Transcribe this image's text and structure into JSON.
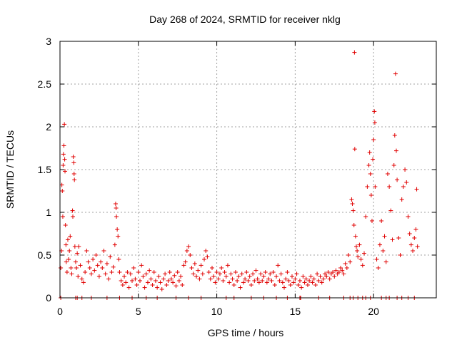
{
  "chart_data": {
    "type": "scatter",
    "title": "Day 268 of 2024, SRMTID for receiver nklg",
    "xlabel": "GPS time / hours",
    "ylabel": "SRMTID / TECUs",
    "xlim": [
      0,
      24
    ],
    "ylim": [
      0,
      3
    ],
    "x_ticks": [
      0,
      5,
      10,
      15,
      20
    ],
    "x_tick_labels": [
      "0",
      "5",
      "10",
      "15",
      "20"
    ],
    "y_ticks": [
      0,
      0.5,
      1,
      1.5,
      2,
      2.5,
      3
    ],
    "y_tick_labels": [
      "0",
      "0.5",
      "1",
      "1.5",
      "2",
      "2.5",
      "3"
    ],
    "grid": true,
    "marker": "+",
    "color": "#e00000",
    "series": [
      {
        "name": "SRMTID",
        "points": [
          [
            0.05,
            0.35
          ],
          [
            0.1,
            0.55
          ],
          [
            0.12,
            1.32
          ],
          [
            0.15,
            1.25
          ],
          [
            0.18,
            0.95
          ],
          [
            0.2,
            1.55
          ],
          [
            0.22,
            1.68
          ],
          [
            0.25,
            1.78
          ],
          [
            0.28,
            2.03
          ],
          [
            0.3,
            1.62
          ],
          [
            0.32,
            1.48
          ],
          [
            0.35,
            0.85
          ],
          [
            0.38,
            0.62
          ],
          [
            0.4,
            0.42
          ],
          [
            0.45,
            0.3
          ],
          [
            0.5,
            0.68
          ],
          [
            0.55,
            0.45
          ],
          [
            0.6,
            0.55
          ],
          [
            0.65,
            0.72
          ],
          [
            0.7,
            0.35
          ],
          [
            0.75,
            0.28
          ],
          [
            0.8,
            1.02
          ],
          [
            0.82,
            0.95
          ],
          [
            0.85,
            1.65
          ],
          [
            0.88,
            1.58
          ],
          [
            0.9,
            1.45
          ],
          [
            0.92,
            1.38
          ],
          [
            0.95,
            0.6
          ],
          [
            1.0,
            0.42
          ],
          [
            1.05,
            0.35
          ],
          [
            1.1,
            0.52
          ],
          [
            1.15,
            0.25
          ],
          [
            1.2,
            0.6
          ],
          [
            1.3,
            0.38
          ],
          [
            1.4,
            0.22
          ],
          [
            1.5,
            0.18
          ],
          [
            1.6,
            0.3
          ],
          [
            1.7,
            0.55
          ],
          [
            1.8,
            0.42
          ],
          [
            1.9,
            0.35
          ],
          [
            2.0,
            0.28
          ],
          [
            2.1,
            0.45
          ],
          [
            2.2,
            0.32
          ],
          [
            2.3,
            0.5
          ],
          [
            2.4,
            0.38
          ],
          [
            2.5,
            0.25
          ],
          [
            2.6,
            0.42
          ],
          [
            2.7,
            0.35
          ],
          [
            2.8,
            0.55
          ],
          [
            2.9,
            0.28
          ],
          [
            3.0,
            0.4
          ],
          [
            3.1,
            0.22
          ],
          [
            3.2,
            0.48
          ],
          [
            3.3,
            0.3
          ],
          [
            3.4,
            0.36
          ],
          [
            3.5,
            0.62
          ],
          [
            3.55,
            1.1
          ],
          [
            3.58,
            1.05
          ],
          [
            3.6,
            0.95
          ],
          [
            3.65,
            0.8
          ],
          [
            3.7,
            0.72
          ],
          [
            3.75,
            0.45
          ],
          [
            3.8,
            0.3
          ],
          [
            3.9,
            0.2
          ],
          [
            4.0,
            0.15
          ],
          [
            4.1,
            0.25
          ],
          [
            4.2,
            0.18
          ],
          [
            4.3,
            0.3
          ],
          [
            4.4,
            0.12
          ],
          [
            4.5,
            0.28
          ],
          [
            4.6,
            0.2
          ],
          [
            4.7,
            0.35
          ],
          [
            4.8,
            0.22
          ],
          [
            4.9,
            0.15
          ],
          [
            5.0,
            0.3
          ],
          [
            5.1,
            0.2
          ],
          [
            5.2,
            0.38
          ],
          [
            5.3,
            0.25
          ],
          [
            5.4,
            0.12
          ],
          [
            5.5,
            0.28
          ],
          [
            5.6,
            0.18
          ],
          [
            5.7,
            0.32
          ],
          [
            5.8,
            0.22
          ],
          [
            5.9,
            0.15
          ],
          [
            6.0,
            0.3
          ],
          [
            6.1,
            0.2
          ],
          [
            6.2,
            0.12
          ],
          [
            6.3,
            0.25
          ],
          [
            6.4,
            0.18
          ],
          [
            6.5,
            0.1
          ],
          [
            6.6,
            0.22
          ],
          [
            6.7,
            0.28
          ],
          [
            6.8,
            0.15
          ],
          [
            6.9,
            0.2
          ],
          [
            7.0,
            0.3
          ],
          [
            7.1,
            0.22
          ],
          [
            7.2,
            0.18
          ],
          [
            7.3,
            0.26
          ],
          [
            7.4,
            0.14
          ],
          [
            7.5,
            0.3
          ],
          [
            7.6,
            0.2
          ],
          [
            7.7,
            0.25
          ],
          [
            7.8,
            0.15
          ],
          [
            7.9,
            0.38
          ],
          [
            8.0,
            0.42
          ],
          [
            8.1,
            0.55
          ],
          [
            8.2,
            0.6
          ],
          [
            8.3,
            0.5
          ],
          [
            8.4,
            0.35
          ],
          [
            8.5,
            0.28
          ],
          [
            8.6,
            0.4
          ],
          [
            8.7,
            0.25
          ],
          [
            8.8,
            0.32
          ],
          [
            8.9,
            0.22
          ],
          [
            9.0,
            0.38
          ],
          [
            9.1,
            0.28
          ],
          [
            9.2,
            0.45
          ],
          [
            9.3,
            0.55
          ],
          [
            9.4,
            0.48
          ],
          [
            9.5,
            0.3
          ],
          [
            9.6,
            0.22
          ],
          [
            9.7,
            0.35
          ],
          [
            9.8,
            0.25
          ],
          [
            9.9,
            0.18
          ],
          [
            10.0,
            0.3
          ],
          [
            10.1,
            0.22
          ],
          [
            10.2,
            0.28
          ],
          [
            10.3,
            0.35
          ],
          [
            10.4,
            0.2
          ],
          [
            10.5,
            0.3
          ],
          [
            10.6,
            0.25
          ],
          [
            10.7,
            0.38
          ],
          [
            10.8,
            0.18
          ],
          [
            10.9,
            0.28
          ],
          [
            11.0,
            0.22
          ],
          [
            11.1,
            0.15
          ],
          [
            11.2,
            0.3
          ],
          [
            11.3,
            0.2
          ],
          [
            11.4,
            0.25
          ],
          [
            11.5,
            0.12
          ],
          [
            11.6,
            0.28
          ],
          [
            11.7,
            0.18
          ],
          [
            11.8,
            0.22
          ],
          [
            11.9,
            0.3
          ],
          [
            12.0,
            0.2
          ],
          [
            12.1,
            0.25
          ],
          [
            12.2,
            0.15
          ],
          [
            12.3,
            0.28
          ],
          [
            12.4,
            0.2
          ],
          [
            12.5,
            0.32
          ],
          [
            12.6,
            0.22
          ],
          [
            12.7,
            0.18
          ],
          [
            12.8,
            0.28
          ],
          [
            12.9,
            0.2
          ],
          [
            13.0,
            0.25
          ],
          [
            13.1,
            0.3
          ],
          [
            13.2,
            0.18
          ],
          [
            13.3,
            0.22
          ],
          [
            13.4,
            0.28
          ],
          [
            13.5,
            0.2
          ],
          [
            13.6,
            0.3
          ],
          [
            13.7,
            0.15
          ],
          [
            13.8,
            0.25
          ],
          [
            13.9,
            0.38
          ],
          [
            14.0,
            0.2
          ],
          [
            14.1,
            0.28
          ],
          [
            14.2,
            0.18
          ],
          [
            14.3,
            0.12
          ],
          [
            14.4,
            0.22
          ],
          [
            14.5,
            0.3
          ],
          [
            14.6,
            0.2
          ],
          [
            14.7,
            0.15
          ],
          [
            14.8,
            0.25
          ],
          [
            14.9,
            0.18
          ],
          [
            15.0,
            0.22
          ],
          [
            15.1,
            0.28
          ],
          [
            15.2,
            0.15
          ],
          [
            15.3,
            0.2
          ],
          [
            15.4,
            0.12
          ],
          [
            15.5,
            0.25
          ],
          [
            15.6,
            0.18
          ],
          [
            15.7,
            0.22
          ],
          [
            15.8,
            0.15
          ],
          [
            15.9,
            0.2
          ],
          [
            16.0,
            0.25
          ],
          [
            16.1,
            0.18
          ],
          [
            16.2,
            0.22
          ],
          [
            16.3,
            0.15
          ],
          [
            16.4,
            0.28
          ],
          [
            16.5,
            0.2
          ],
          [
            16.6,
            0.25
          ],
          [
            16.7,
            0.18
          ],
          [
            16.8,
            0.22
          ],
          [
            16.9,
            0.28
          ],
          [
            17.0,
            0.25
          ],
          [
            17.1,
            0.3
          ],
          [
            17.2,
            0.22
          ],
          [
            17.3,
            0.28
          ],
          [
            17.4,
            0.3
          ],
          [
            17.5,
            0.25
          ],
          [
            17.6,
            0.32
          ],
          [
            17.7,
            0.28
          ],
          [
            17.8,
            0.3
          ],
          [
            17.9,
            0.35
          ],
          [
            18.0,
            0.32
          ],
          [
            18.1,
            0.28
          ],
          [
            18.2,
            0.4
          ],
          [
            18.3,
            0.35
          ],
          [
            18.4,
            0.5
          ],
          [
            18.5,
            0.42
          ],
          [
            18.6,
            1.15
          ],
          [
            18.65,
            1.1
          ],
          [
            18.7,
            1.02
          ],
          [
            18.75,
            0.85
          ],
          [
            18.78,
            2.87
          ],
          [
            18.8,
            1.74
          ],
          [
            18.85,
            0.72
          ],
          [
            18.9,
            0.6
          ],
          [
            18.95,
            0.55
          ],
          [
            19.0,
            0.48
          ],
          [
            19.1,
            0.62
          ],
          [
            19.2,
            0.45
          ],
          [
            19.3,
            0.38
          ],
          [
            19.4,
            0.52
          ],
          [
            19.5,
            0.95
          ],
          [
            19.6,
            1.3
          ],
          [
            19.7,
            1.55
          ],
          [
            19.75,
            1.7
          ],
          [
            19.8,
            1.45
          ],
          [
            19.85,
            1.2
          ],
          [
            19.9,
            0.9
          ],
          [
            19.95,
            1.62
          ],
          [
            20.0,
            1.85
          ],
          [
            20.05,
            2.18
          ],
          [
            20.08,
            2.05
          ],
          [
            20.1,
            1.3
          ],
          [
            20.2,
            0.45
          ],
          [
            20.3,
            0.35
          ],
          [
            20.4,
            0.62
          ],
          [
            20.5,
            0.9
          ],
          [
            20.6,
            0.55
          ],
          [
            20.7,
            0.72
          ],
          [
            20.8,
            0.42
          ],
          [
            20.9,
            1.45
          ],
          [
            21.0,
            1.3
          ],
          [
            21.1,
            1.02
          ],
          [
            21.2,
            0.68
          ],
          [
            21.3,
            1.55
          ],
          [
            21.35,
            1.9
          ],
          [
            21.4,
            2.62
          ],
          [
            21.45,
            1.72
          ],
          [
            21.5,
            1.38
          ],
          [
            21.6,
            0.7
          ],
          [
            21.7,
            0.5
          ],
          [
            21.8,
            1.15
          ],
          [
            21.9,
            1.3
          ],
          [
            22.0,
            1.5
          ],
          [
            22.1,
            1.35
          ],
          [
            22.2,
            0.95
          ],
          [
            22.3,
            0.75
          ],
          [
            22.4,
            0.62
          ],
          [
            22.5,
            0.55
          ],
          [
            22.6,
            0.7
          ],
          [
            22.7,
            0.8
          ],
          [
            22.75,
            1.27
          ],
          [
            22.8,
            0.6
          ],
          [
            0.05,
            0.0
          ],
          [
            1.0,
            0.0
          ],
          [
            1.1,
            0.0
          ],
          [
            1.4,
            0.0
          ],
          [
            2.0,
            0.0
          ],
          [
            3.0,
            0.0
          ],
          [
            3.8,
            0.0
          ],
          [
            4.6,
            0.0
          ],
          [
            5.5,
            0.0
          ],
          [
            6.2,
            0.0
          ],
          [
            7.4,
            0.0
          ],
          [
            8.2,
            0.0
          ],
          [
            9.0,
            0.0
          ],
          [
            10.6,
            0.0
          ],
          [
            11.1,
            0.0
          ],
          [
            12.2,
            0.0
          ],
          [
            13.0,
            0.0
          ],
          [
            13.8,
            0.0
          ],
          [
            14.5,
            0.0
          ],
          [
            15.3,
            0.0
          ],
          [
            15.35,
            0.0
          ],
          [
            16.5,
            0.0
          ],
          [
            17.2,
            0.0
          ],
          [
            18.1,
            0.0
          ],
          [
            18.5,
            0.0
          ],
          [
            18.7,
            0.0
          ],
          [
            19.0,
            0.0
          ],
          [
            19.3,
            0.0
          ],
          [
            19.5,
            0.0
          ],
          [
            19.8,
            0.0
          ],
          [
            20.5,
            0.0
          ],
          [
            20.8,
            0.0
          ],
          [
            21.0,
            0.0
          ],
          [
            21.5,
            0.0
          ],
          [
            21.8,
            0.0
          ],
          [
            22.2,
            0.0
          ],
          [
            22.6,
            0.0
          ]
        ]
      }
    ]
  }
}
